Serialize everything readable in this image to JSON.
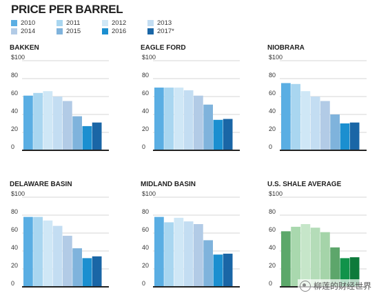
{
  "title": "PRICE PER BARREL",
  "legend": [
    {
      "label": "2010",
      "color": "#5aaee3"
    },
    {
      "label": "2011",
      "color": "#a9d6f0"
    },
    {
      "label": "2012",
      "color": "#cfe7f6"
    },
    {
      "label": "2013",
      "color": "#c3ddf2"
    },
    {
      "label": "2014",
      "color": "#b2cbe6"
    },
    {
      "label": "2015",
      "color": "#7fb3dc"
    },
    {
      "label": "2016",
      "color": "#1b8fd0"
    },
    {
      "label": "2017*",
      "color": "#1a66a6"
    }
  ],
  "watermark": "柳莲的财经世界",
  "chart_data": [
    {
      "type": "bar",
      "title": "BAKKEN",
      "categories": [
        "2010",
        "2011",
        "2012",
        "2013",
        "2014",
        "2015",
        "2016",
        "2017*"
      ],
      "values": [
        61,
        64,
        66,
        60,
        55,
        38,
        27,
        31
      ],
      "ylim": [
        0,
        100
      ],
      "yticks": [
        "$100",
        "80",
        "60",
        "40",
        "20",
        "0"
      ],
      "colors": [
        "#5aaee3",
        "#a9d6f0",
        "#cfe7f6",
        "#c3ddf2",
        "#b2cbe6",
        "#7fb3dc",
        "#1b8fd0",
        "#1a66a6"
      ]
    },
    {
      "type": "bar",
      "title": "EAGLE FORD",
      "categories": [
        "2010",
        "2011",
        "2012",
        "2013",
        "2014",
        "2015",
        "2016",
        "2017*"
      ],
      "values": [
        70,
        70,
        70,
        67,
        61,
        51,
        34,
        35
      ],
      "ylim": [
        0,
        100
      ],
      "yticks": [
        "$100",
        "80",
        "60",
        "40",
        "20",
        "0"
      ],
      "colors": [
        "#5aaee3",
        "#a9d6f0",
        "#cfe7f6",
        "#c3ddf2",
        "#b2cbe6",
        "#7fb3dc",
        "#1b8fd0",
        "#1a66a6"
      ]
    },
    {
      "type": "bar",
      "title": "NIOBRARA",
      "categories": [
        "2010",
        "2011",
        "2012",
        "2013",
        "2014",
        "2015",
        "2016",
        "2017*"
      ],
      "values": [
        75,
        74,
        66,
        60,
        55,
        40,
        30,
        31
      ],
      "ylim": [
        0,
        100
      ],
      "yticks": [
        "$100",
        "80",
        "60",
        "40",
        "20",
        "0"
      ],
      "colors": [
        "#5aaee3",
        "#a9d6f0",
        "#cfe7f6",
        "#c3ddf2",
        "#b2cbe6",
        "#7fb3dc",
        "#1b8fd0",
        "#1a66a6"
      ]
    },
    {
      "type": "bar",
      "title": "DELAWARE BASIN",
      "categories": [
        "2010",
        "2011",
        "2012",
        "2013",
        "2014",
        "2015",
        "2016",
        "2017*"
      ],
      "values": [
        78,
        78,
        74,
        68,
        57,
        43,
        32,
        34
      ],
      "ylim": [
        0,
        100
      ],
      "yticks": [
        "$100",
        "80",
        "60",
        "40",
        "20",
        "0"
      ],
      "colors": [
        "#5aaee3",
        "#a9d6f0",
        "#cfe7f6",
        "#c3ddf2",
        "#b2cbe6",
        "#7fb3dc",
        "#1b8fd0",
        "#1a66a6"
      ]
    },
    {
      "type": "bar",
      "title": "MIDLAND BASIN",
      "categories": [
        "2010",
        "2011",
        "2012",
        "2013",
        "2014",
        "2015",
        "2016",
        "2017*"
      ],
      "values": [
        78,
        72,
        77,
        73,
        70,
        52,
        36,
        37
      ],
      "ylim": [
        0,
        100
      ],
      "yticks": [
        "$100",
        "80",
        "60",
        "40",
        "20",
        "0"
      ],
      "colors": [
        "#5aaee3",
        "#a9d6f0",
        "#cfe7f6",
        "#c3ddf2",
        "#b2cbe6",
        "#7fb3dc",
        "#1b8fd0",
        "#1a66a6"
      ]
    },
    {
      "type": "bar",
      "title": "U.S. SHALE AVERAGE",
      "categories": [
        "2010",
        "2011",
        "2012",
        "2013",
        "2014",
        "2015",
        "2016",
        "2017*"
      ],
      "values": [
        62,
        67,
        70,
        66,
        61,
        44,
        32,
        33
      ],
      "ylim": [
        0,
        100
      ],
      "yticks": [
        "$100",
        "80",
        "60",
        "40",
        "20",
        "0"
      ],
      "colors": [
        "#5ca86a",
        "#a9d8ae",
        "#c6e6c9",
        "#b4dcb8",
        "#a5d4a9",
        "#5da66b",
        "#11934a",
        "#0e7a3b"
      ]
    }
  ]
}
